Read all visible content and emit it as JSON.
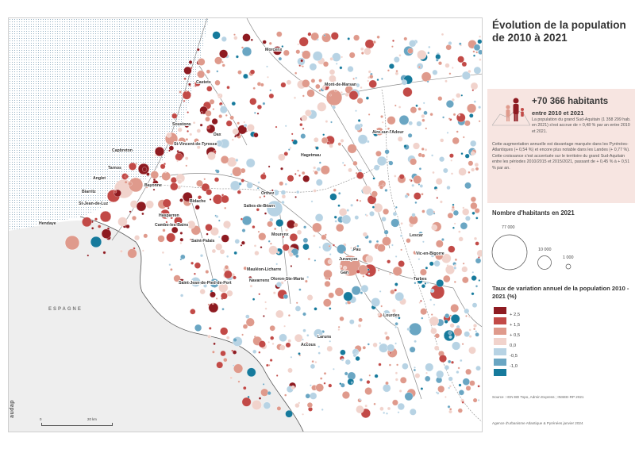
{
  "title": "Évolution de la population de 2010 à 2021",
  "info_box": {
    "headline": "+70 366 habitants",
    "subline": "entre 2010 et 2021",
    "paragraph1": "La population du grand Sud-Aquitain (1 358 299 hab. en 2021) s'est accrue de + 0,48 % par an entre 2010 et 2021.",
    "paragraph2": "Cette augmentation annuelle est davantage marquée dans les Pyrénées-Atlantiques (+ 0,54 %) et encore plus notable dans les Landes (+ 0,77 %). Cette croissance s'est accentuée sur le territoire du grand Sud-Aquitain entre les périodes 2010/2015 et 2015/2021, passant de + 0,45 % à + 0,51 % par an."
  },
  "legend_size": {
    "title": "Nombre d'habitants en 2021",
    "items": [
      {
        "label": "77 000",
        "value": 77000
      },
      {
        "label": "10 000",
        "value": 10000
      },
      {
        "label": "1 000",
        "value": 1000
      }
    ]
  },
  "legend_color": {
    "title": "Taux de variation annuel de la population 2010 - 2021 (%)",
    "classes": [
      {
        "label": "+ 2,5",
        "color": "#8e1b21"
      },
      {
        "label": "+ 1,5",
        "color": "#c24a47"
      },
      {
        "label": "+ 0,5",
        "color": "#df9a8c"
      },
      {
        "label": "0,0",
        "color": "#f1d3cc"
      },
      {
        "label": "-0,5",
        "color": "#b7d3e4"
      },
      {
        "label": "-1,0",
        "color": "#6aa6c3"
      },
      {
        "label": "",
        "color": "#167a9c"
      }
    ]
  },
  "source": "Source : IGN BD Topo, Admin Express ; INSEE-RP 2021",
  "footer": "Agence d'urbanisme Atlantique & Pyrénées     janvier 2024",
  "scale": {
    "start": "0",
    "end": "20 km"
  },
  "logo": "audap",
  "country_label": "ESPAGNE",
  "places": [
    {
      "name": "Morcenx"
    },
    {
      "name": "Castets"
    },
    {
      "name": "Mont-de-Marsan"
    },
    {
      "name": "Soustons"
    },
    {
      "name": "Dax"
    },
    {
      "name": "Aire-sur-l'Adour"
    },
    {
      "name": "Capbreton"
    },
    {
      "name": "St-Vincent-de-Tyrosse"
    },
    {
      "name": "Hagetmau"
    },
    {
      "name": "Tarnos"
    },
    {
      "name": "Anglet"
    },
    {
      "name": "Bayonne"
    },
    {
      "name": "Biarritz"
    },
    {
      "name": "St-Jean-de-Luz"
    },
    {
      "name": "Hendaye"
    },
    {
      "name": "Orthez"
    },
    {
      "name": "Salies-de-Béarn"
    },
    {
      "name": "Bidache"
    },
    {
      "name": "Hasparren"
    },
    {
      "name": "Cambo-les-Bains"
    },
    {
      "name": "Saint-Palais"
    },
    {
      "name": "Mourenx"
    },
    {
      "name": "Pau"
    },
    {
      "name": "Lescar"
    },
    {
      "name": "Jurançon"
    },
    {
      "name": "Vic-en-Bigorre"
    },
    {
      "name": "Saint-Jean-de-Pied-de-Port"
    },
    {
      "name": "Mauléon-Licharre"
    },
    {
      "name": "Oloron-Ste-Marie"
    },
    {
      "name": "Gan"
    },
    {
      "name": "Tarbes"
    },
    {
      "name": "Lourdes"
    },
    {
      "name": "Laruns"
    },
    {
      "name": "Accous"
    },
    {
      "name": "Navarrenx"
    }
  ]
}
